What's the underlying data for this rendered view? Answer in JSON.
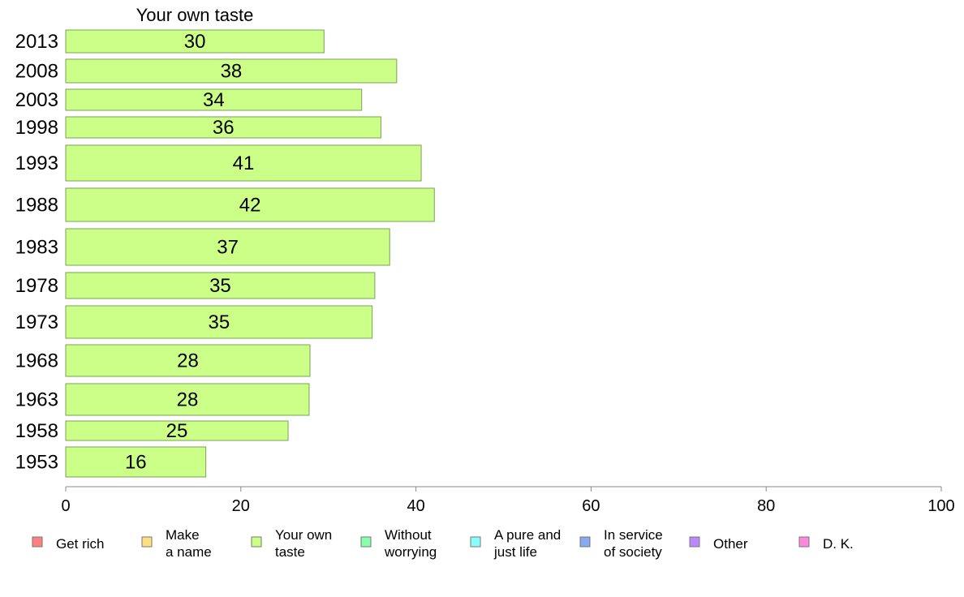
{
  "chart_data": {
    "type": "bar",
    "orientation": "horizontal",
    "title": "Your own taste",
    "categories": [
      "2013",
      "2008",
      "2003",
      "1998",
      "1993",
      "1988",
      "1983",
      "1978",
      "1973",
      "1968",
      "1963",
      "1958",
      "1953"
    ],
    "values": [
      30,
      38,
      34,
      36,
      41,
      42,
      37,
      35,
      35,
      28,
      28,
      25,
      16
    ],
    "bar_value_extent": [
      29.5,
      37.8,
      33.8,
      36.0,
      40.6,
      42.1,
      37.0,
      35.3,
      35.0,
      27.9,
      27.8,
      25.4,
      16.0
    ],
    "xlim": [
      0,
      100
    ],
    "xticks": [
      "0",
      "20",
      "40",
      "60",
      "80",
      "100"
    ],
    "bar_color": "#ccff88",
    "legend": {
      "placement": "bottom",
      "items": [
        {
          "lines": [
            "Get rich"
          ],
          "color": "#ff8080"
        },
        {
          "lines": [
            "Make",
            "a name"
          ],
          "color": "#ffe080"
        },
        {
          "lines": [
            "Your own",
            "taste"
          ],
          "color": "#ccff88"
        },
        {
          "lines": [
            "Without",
            "worrying"
          ],
          "color": "#88ffaa"
        },
        {
          "lines": [
            "A pure and",
            "just life"
          ],
          "color": "#88ffff"
        },
        {
          "lines": [
            "In service",
            "of society"
          ],
          "color": "#88aaee"
        },
        {
          "lines": [
            "Other"
          ],
          "color": "#bb88ff"
        },
        {
          "lines": [
            "D. K."
          ],
          "color": "#ff88dd"
        }
      ]
    }
  }
}
